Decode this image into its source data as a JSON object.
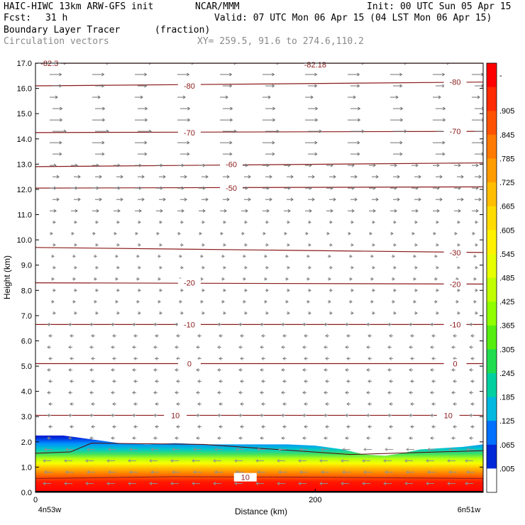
{
  "header": {
    "model": "HAIC-HIWC 13km ARW-GFS init",
    "org": "NCAR/MMM",
    "init": "Init: 00 UTC Sun 05 Apr 15",
    "fcst_label": "Fcst:",
    "fcst_value": "31 h",
    "valid": "Valid: 07 UTC Mon 06 Apr 15 (04 LST Mon 06 Apr 15)",
    "field": "Boundary Layer Tracer",
    "units": "(fraction)",
    "overlay": "Circulation vectors",
    "xy": "XY= 259.5, 91.6 to 274.6,110.2"
  },
  "chart_data": {
    "type": "heatmap",
    "xlabel": "Distance (km)",
    "ylabel": "Height (km)",
    "xlim": [
      0,
      320
    ],
    "ylim": [
      0,
      17
    ],
    "x_ticks": [
      "0",
      "200"
    ],
    "x_tick_values": [
      0,
      200
    ],
    "x_end_labels": [
      "4n53w",
      "6n51w"
    ],
    "y_ticks": [
      "0.0",
      "1.0",
      "2.0",
      "3.0",
      "4.0",
      "5.0",
      "6.0",
      "7.0",
      "8.0",
      "9.0",
      "10.0",
      "11.0",
      "12.0",
      "13.0",
      "14.0",
      "15.0",
      "16.0",
      "17.0"
    ],
    "colorbar": {
      "labels": [
        "-",
        ".905",
        ".845",
        ".785",
        ".725",
        ".665",
        ".605",
        ".545",
        ".485",
        ".425",
        ".365",
        ".305",
        ".245",
        ".185",
        ".125",
        ".065",
        ".005"
      ],
      "colors": [
        "#ff0000",
        "#ff2a00",
        "#ff5200",
        "#ff7a00",
        "#ff9c00",
        "#ffbe00",
        "#ffdc00",
        "#fff200",
        "#e8ff00",
        "#c0ff00",
        "#90ff00",
        "#55ee10",
        "#20dd50",
        "#00d0a0",
        "#00b8e0",
        "#0070ff",
        "#0028d8",
        "#ffffff"
      ]
    },
    "tracer_top_km": [
      [
        0,
        2.25
      ],
      [
        20,
        2.25
      ],
      [
        40,
        2.1
      ],
      [
        60,
        1.95
      ],
      [
        80,
        1.9
      ],
      [
        100,
        1.95
      ],
      [
        120,
        1.9
      ],
      [
        140,
        1.9
      ],
      [
        160,
        1.9
      ],
      [
        180,
        1.9
      ],
      [
        200,
        1.85
      ],
      [
        220,
        1.7
      ],
      [
        235,
        1.5
      ],
      [
        250,
        1.45
      ],
      [
        262,
        1.55
      ],
      [
        275,
        1.7
      ],
      [
        290,
        1.75
      ],
      [
        305,
        1.8
      ],
      [
        320,
        1.9
      ]
    ],
    "isotherms": [
      {
        "label": "10",
        "y": [
          3.05,
          3.05
        ]
      },
      {
        "label": "0",
        "y": [
          5.1,
          5.1
        ]
      },
      {
        "label": "-10",
        "y": [
          6.65,
          6.65
        ]
      },
      {
        "label": "-20",
        "y": [
          8.3,
          8.25
        ]
      },
      {
        "label": "-30",
        "y": [
          9.7,
          9.5
        ]
      },
      {
        "label": "-50",
        "y": [
          12.05,
          12.1
        ]
      },
      {
        "label": "-60",
        "y": [
          12.9,
          13.05
        ]
      },
      {
        "label": "-70",
        "y": [
          14.25,
          14.3
        ]
      },
      {
        "label": "-80",
        "y": [
          16.1,
          16.25
        ]
      },
      {
        "label": "-82.18",
        "y": [
          17.0,
          17.0
        ]
      },
      {
        "label": "-82.3",
        "y": [
          17.0,
          17.0
        ]
      }
    ],
    "isotherm_labels": [
      {
        "text": "-82.3",
        "x": 10,
        "y": 17.0
      },
      {
        "text": "-82.18",
        "x": 200,
        "y": 16.95
      },
      {
        "text": "-80",
        "x": 110,
        "y": 16.1
      },
      {
        "text": "-80",
        "x": 300,
        "y": 16.25
      },
      {
        "text": "-70",
        "x": 110,
        "y": 14.25
      },
      {
        "text": "-70",
        "x": 300,
        "y": 14.3
      },
      {
        "text": "-60",
        "x": 140,
        "y": 13.0
      },
      {
        "text": "-50",
        "x": 140,
        "y": 12.05
      },
      {
        "text": "-30",
        "x": 300,
        "y": 9.5
      },
      {
        "text": "-20",
        "x": 110,
        "y": 8.3
      },
      {
        "text": "-20",
        "x": 300,
        "y": 8.25
      },
      {
        "text": "-10",
        "x": 110,
        "y": 6.65
      },
      {
        "text": "-10",
        "x": 300,
        "y": 6.65
      },
      {
        "text": "0",
        "x": 110,
        "y": 5.1
      },
      {
        "text": "0",
        "x": 300,
        "y": 5.1
      },
      {
        "text": "10",
        "x": 100,
        "y": 3.05
      },
      {
        "text": "10",
        "x": 295,
        "y": 3.05
      },
      {
        "text": "10",
        "x": 150,
        "y": 0.6
      }
    ]
  }
}
